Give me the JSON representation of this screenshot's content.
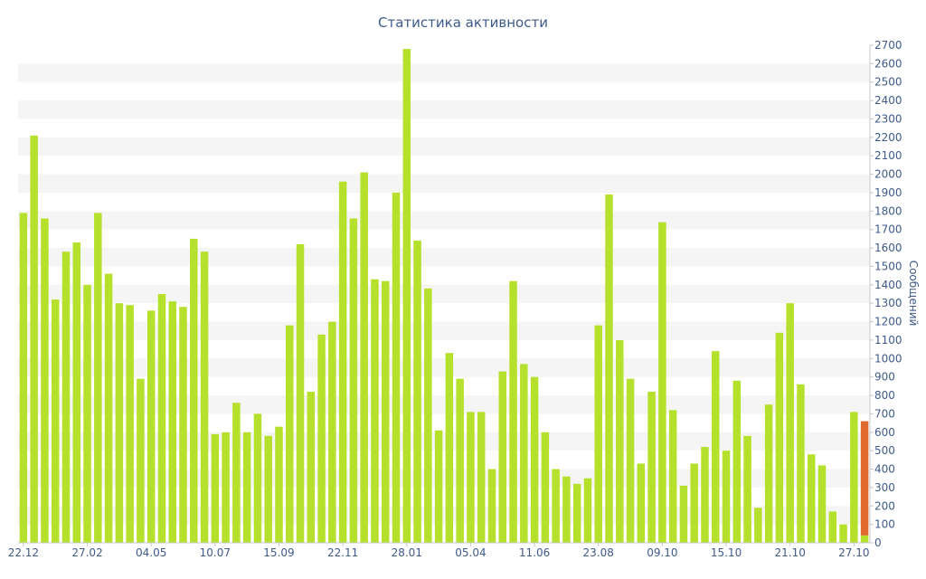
{
  "chart_data": {
    "type": "bar",
    "title": "Статистика активности",
    "ylabel": "Сообщений",
    "xlabel": "",
    "ylim": [
      0,
      2700
    ],
    "y_ticks": [
      0,
      100,
      200,
      300,
      400,
      500,
      600,
      700,
      800,
      900,
      1000,
      1100,
      1200,
      1300,
      1400,
      1500,
      1600,
      1700,
      1800,
      1900,
      2000,
      2100,
      2200,
      2300,
      2400,
      2500,
      2600,
      2700
    ],
    "y_axis_side": "right",
    "grid": "alternating horizontal bands",
    "x_tick_labels": [
      {
        "index": 0,
        "label": "22.12"
      },
      {
        "index": 6,
        "label": "27.02"
      },
      {
        "index": 12,
        "label": "04.05"
      },
      {
        "index": 18,
        "label": "10.07"
      },
      {
        "index": 24,
        "label": "15.09"
      },
      {
        "index": 30,
        "label": "22.11"
      },
      {
        "index": 36,
        "label": "28.01"
      },
      {
        "index": 42,
        "label": "05.04"
      },
      {
        "index": 48,
        "label": "11.06"
      },
      {
        "index": 54,
        "label": "23.08"
      },
      {
        "index": 60,
        "label": "09.10"
      },
      {
        "index": 66,
        "label": "15.10"
      },
      {
        "index": 72,
        "label": "21.10"
      },
      {
        "index": 78,
        "label": "27.10"
      }
    ],
    "series": [
      {
        "color": "#b5e02b",
        "values": [
          1790,
          2210,
          1760,
          1320,
          1580,
          1630,
          1400,
          1790,
          1460,
          1300,
          1290,
          890,
          1260,
          1350,
          1310,
          1280,
          1650,
          1580,
          590,
          600,
          760,
          600,
          700,
          580,
          630,
          1180,
          1620,
          820,
          1130,
          1200,
          1960,
          1760,
          2010,
          1430,
          1420,
          1900,
          2680,
          1640,
          1380,
          610,
          1030,
          890,
          710,
          710,
          400,
          930,
          1420,
          970,
          900,
          600,
          400,
          360,
          320,
          350,
          1180,
          1890,
          1100,
          890,
          430,
          820,
          1740,
          720,
          310,
          430,
          520,
          1040,
          500,
          880,
          580,
          190,
          750,
          1140,
          1300,
          860,
          480,
          420,
          170,
          100,
          710,
          40
        ]
      },
      {
        "color": "#e06a2e",
        "values": [
          0,
          0,
          0,
          0,
          0,
          0,
          0,
          0,
          0,
          0,
          0,
          0,
          0,
          0,
          0,
          0,
          0,
          0,
          0,
          0,
          0,
          0,
          0,
          0,
          0,
          0,
          0,
          0,
          0,
          0,
          0,
          0,
          0,
          0,
          0,
          0,
          0,
          0,
          0,
          0,
          0,
          0,
          0,
          0,
          0,
          0,
          0,
          0,
          0,
          0,
          0,
          0,
          0,
          0,
          0,
          0,
          0,
          0,
          0,
          0,
          0,
          0,
          0,
          0,
          0,
          0,
          0,
          0,
          0,
          0,
          0,
          0,
          0,
          0,
          0,
          0,
          0,
          0,
          0,
          620
        ]
      }
    ]
  }
}
